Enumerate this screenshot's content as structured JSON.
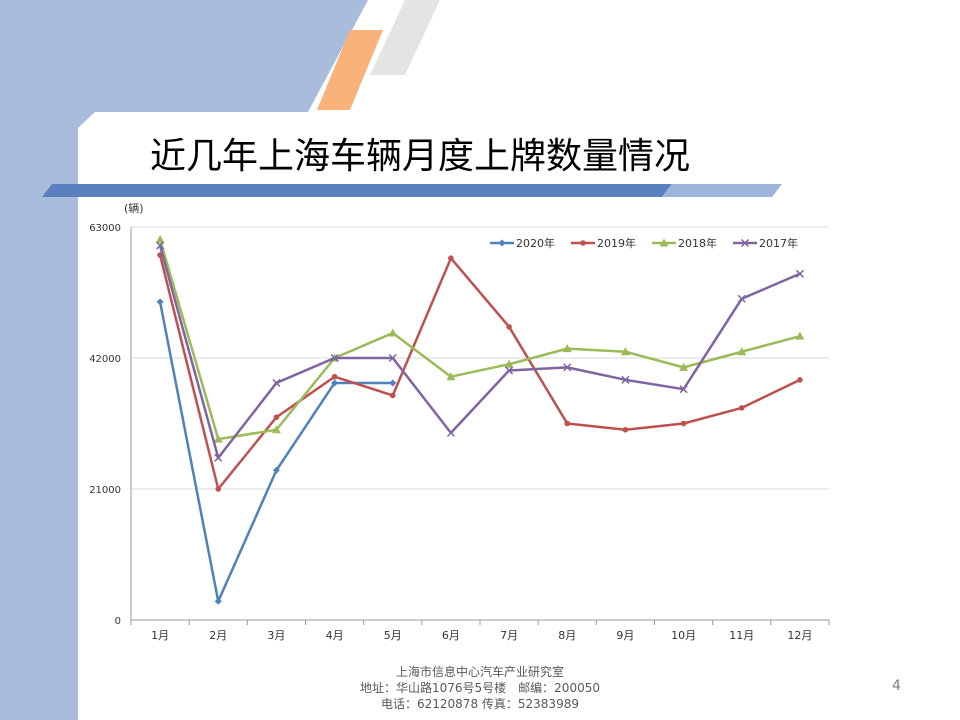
{
  "slide": {
    "title": "近几年上海车辆月度上牌数量情况",
    "page_number": "4"
  },
  "footer": {
    "line1": "上海市信息中心汽车产业研究室",
    "line2": "地址：华山路1076号5号楼　邮编：200050",
    "line3": "电话：62120878  传真：52383989"
  },
  "chart_data": {
    "type": "line",
    "unit_label": "(辆)",
    "categories": [
      "1月",
      "2月",
      "3月",
      "4月",
      "5月",
      "6月",
      "7月",
      "8月",
      "9月",
      "10月",
      "11月",
      "12月"
    ],
    "y_ticks": [
      0,
      21000,
      42000,
      63000
    ],
    "ylim": [
      0,
      63000
    ],
    "grid": true,
    "legend_position": "top-right",
    "series": [
      {
        "name": "2020年",
        "color": "#4f81bd",
        "marker": "diamond",
        "values": [
          51000,
          3000,
          24000,
          38000,
          38000,
          null,
          null,
          null,
          null,
          null,
          null,
          null
        ]
      },
      {
        "name": "2019年",
        "color": "#c0504d",
        "marker": "circle",
        "values": [
          58500,
          21000,
          32500,
          39000,
          36000,
          58000,
          47000,
          31500,
          30500,
          31500,
          34000,
          38500
        ]
      },
      {
        "name": "2018年",
        "color": "#9bbb59",
        "marker": "triangle",
        "values": [
          61000,
          29000,
          30500,
          42000,
          46000,
          39000,
          41000,
          43500,
          43000,
          40500,
          43000,
          45500
        ]
      },
      {
        "name": "2017年",
        "color": "#8064a2",
        "marker": "x",
        "values": [
          60000,
          26000,
          38000,
          42000,
          42000,
          30000,
          40000,
          40500,
          38500,
          37000,
          51500,
          55500
        ]
      }
    ]
  }
}
